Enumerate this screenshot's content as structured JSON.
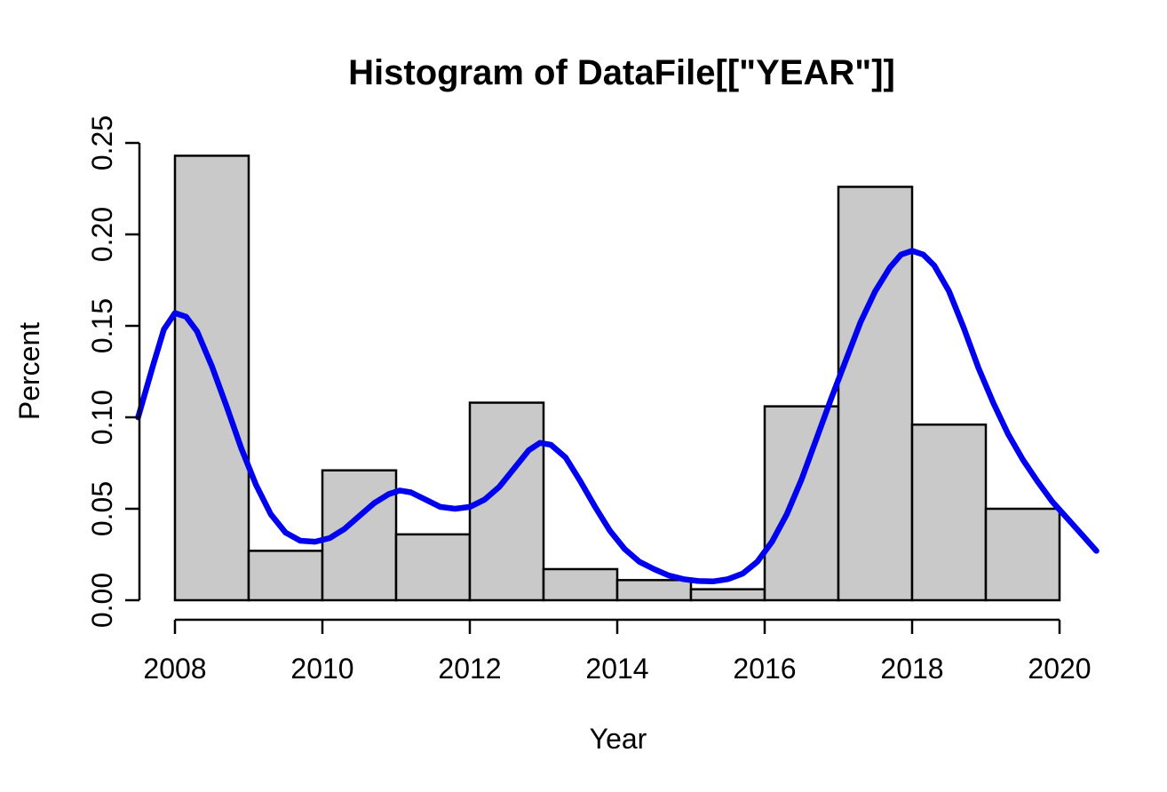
{
  "chart_data": {
    "type": "histogram",
    "title": "Histogram of DataFile[[\"YEAR\"]]",
    "xlabel": "Year",
    "ylabel": "Percent",
    "xlim": [
      2007.5,
      2020.5
    ],
    "ylim": [
      0,
      0.25
    ],
    "grid": false,
    "legend": "none",
    "x_tick_years": [
      2008,
      2010,
      2012,
      2014,
      2016,
      2018,
      2020
    ],
    "x_tick_labels": [
      "2008",
      "2010",
      "2012",
      "2014",
      "2016",
      "2018",
      "2020"
    ],
    "y_ticks": [
      0,
      0.05,
      0.1,
      0.15,
      0.2,
      0.25
    ],
    "y_tick_labels": [
      "0.00",
      "0.05",
      "0.10",
      "0.15",
      "0.20",
      "0.25"
    ],
    "bins": {
      "bin_width_years": 1,
      "start_years": [
        2008,
        2009,
        2010,
        2011,
        2012,
        2013,
        2014,
        2015,
        2016,
        2017,
        2018,
        2019
      ],
      "percent_values": [
        0.243,
        0.027,
        0.071,
        0.036,
        0.108,
        0.017,
        0.011,
        0.006,
        0.106,
        0.226,
        0.096,
        0.05
      ]
    },
    "density_curve": {
      "x_years": [
        2007.5,
        2007.7,
        2007.85,
        2008.0,
        2008.15,
        2008.3,
        2008.5,
        2008.7,
        2008.9,
        2009.1,
        2009.3,
        2009.5,
        2009.7,
        2009.9,
        2010.1,
        2010.3,
        2010.5,
        2010.7,
        2010.9,
        2011.05,
        2011.2,
        2011.4,
        2011.6,
        2011.8,
        2012.0,
        2012.2,
        2012.4,
        2012.6,
        2012.8,
        2012.95,
        2013.1,
        2013.3,
        2013.5,
        2013.7,
        2013.9,
        2014.1,
        2014.3,
        2014.5,
        2014.7,
        2014.9,
        2015.1,
        2015.3,
        2015.5,
        2015.7,
        2015.9,
        2016.1,
        2016.3,
        2016.5,
        2016.7,
        2016.9,
        2017.1,
        2017.3,
        2017.5,
        2017.7,
        2017.85,
        2018.0,
        2018.15,
        2018.3,
        2018.5,
        2018.7,
        2018.9,
        2019.1,
        2019.3,
        2019.5,
        2019.7,
        2019.9,
        2020.1,
        2020.3,
        2020.5
      ],
      "percent_values": [
        0.1,
        0.128,
        0.148,
        0.157,
        0.155,
        0.147,
        0.128,
        0.106,
        0.083,
        0.063,
        0.047,
        0.037,
        0.0325,
        0.032,
        0.034,
        0.039,
        0.046,
        0.053,
        0.058,
        0.06,
        0.059,
        0.055,
        0.051,
        0.05,
        0.051,
        0.055,
        0.062,
        0.072,
        0.082,
        0.086,
        0.085,
        0.078,
        0.065,
        0.051,
        0.038,
        0.028,
        0.021,
        0.017,
        0.0135,
        0.0115,
        0.0105,
        0.0103,
        0.0115,
        0.0145,
        0.021,
        0.032,
        0.047,
        0.066,
        0.088,
        0.11,
        0.131,
        0.152,
        0.169,
        0.182,
        0.189,
        0.191,
        0.189,
        0.183,
        0.169,
        0.149,
        0.127,
        0.108,
        0.091,
        0.077,
        0.065,
        0.054,
        0.045,
        0.036,
        0.027
      ]
    },
    "colors": {
      "bar_fill": "#c9c9c9",
      "bar_border": "#000000",
      "density_line": "#0000f0",
      "axis": "#000000",
      "text": "#000000",
      "background": "#ffffff"
    }
  }
}
